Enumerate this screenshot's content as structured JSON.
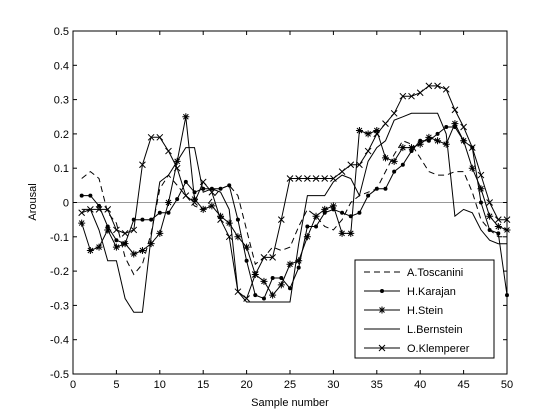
{
  "chart_data": {
    "type": "line",
    "xlabel": "Sample number",
    "ylabel": "Arousal",
    "xlim": [
      0,
      50
    ],
    "ylim": [
      -0.5,
      0.5
    ],
    "xticks": [
      0,
      5,
      10,
      15,
      20,
      25,
      30,
      35,
      40,
      45,
      50
    ],
    "yticks": [
      -0.5,
      -0.4,
      -0.3,
      -0.2,
      -0.1,
      0,
      0.1,
      0.2,
      0.3,
      0.4,
      0.5
    ],
    "zero_line": true,
    "legend_position": "bottom-right",
    "x": [
      1,
      2,
      3,
      4,
      5,
      6,
      7,
      8,
      9,
      10,
      11,
      12,
      13,
      14,
      15,
      16,
      17,
      18,
      19,
      20,
      21,
      22,
      23,
      24,
      25,
      26,
      27,
      28,
      29,
      30,
      31,
      32,
      33,
      34,
      35,
      36,
      37,
      38,
      39,
      40,
      41,
      42,
      43,
      44,
      45,
      46,
      47,
      48,
      49,
      50
    ],
    "series": [
      {
        "name": "A.Toscanini",
        "style": "dashed",
        "marker": "none",
        "values": [
          0.07,
          0.09,
          0.07,
          -0.03,
          -0.06,
          -0.16,
          -0.21,
          -0.18,
          -0.09,
          0.04,
          0.08,
          0.05,
          0.02,
          -0.01,
          -0.02,
          0.01,
          0.04,
          0.05,
          0.02,
          -0.08,
          -0.18,
          -0.16,
          -0.13,
          -0.14,
          -0.13,
          -0.07,
          -0.02,
          -0.04,
          -0.07,
          -0.08,
          -0.05,
          0.0,
          0.02,
          0.03,
          0.04,
          0.09,
          0.14,
          0.18,
          0.17,
          0.13,
          0.09,
          0.08,
          0.08,
          0.09,
          0.09,
          0.03,
          -0.05,
          -0.08,
          -0.1,
          -0.1
        ]
      },
      {
        "name": "H.Karajan",
        "style": "solid",
        "marker": "dot",
        "values": [
          0.02,
          0.02,
          -0.01,
          -0.07,
          -0.11,
          -0.12,
          -0.05,
          -0.05,
          -0.05,
          -0.03,
          -0.03,
          0.01,
          0.06,
          0.03,
          0.04,
          0.04,
          0.04,
          0.05,
          -0.05,
          -0.17,
          -0.27,
          -0.28,
          -0.22,
          -0.22,
          -0.25,
          -0.19,
          -0.07,
          -0.07,
          -0.03,
          -0.02,
          -0.03,
          -0.04,
          -0.03,
          0.02,
          0.04,
          0.04,
          0.09,
          0.11,
          0.15,
          0.18,
          0.18,
          0.2,
          0.22,
          0.22,
          0.18,
          0.16,
          0.0,
          -0.08,
          -0.09,
          -0.27
        ]
      },
      {
        "name": "H.Stein",
        "style": "solid",
        "marker": "star",
        "values": [
          -0.06,
          -0.14,
          -0.13,
          -0.08,
          -0.13,
          -0.12,
          -0.15,
          -0.14,
          -0.12,
          -0.09,
          0.0,
          0.12,
          0.25,
          0.01,
          -0.02,
          -0.01,
          -0.04,
          -0.06,
          -0.1,
          -0.13,
          -0.21,
          -0.23,
          -0.27,
          -0.24,
          -0.18,
          -0.17,
          -0.1,
          -0.04,
          -0.02,
          -0.01,
          -0.09,
          -0.09,
          0.21,
          0.2,
          0.21,
          0.13,
          0.12,
          0.16,
          0.16,
          0.17,
          0.19,
          0.18,
          0.17,
          0.23,
          0.18,
          0.1,
          0.04,
          -0.04,
          -0.07,
          -0.08
        ]
      },
      {
        "name": "L.Bernstein",
        "style": "solid",
        "marker": "none",
        "values": [
          -0.02,
          -0.02,
          -0.08,
          -0.17,
          -0.17,
          -0.28,
          -0.32,
          -0.32,
          -0.1,
          0.06,
          0.08,
          0.12,
          0.16,
          0.16,
          0.03,
          0.04,
          0.03,
          -0.02,
          -0.26,
          -0.29,
          -0.29,
          -0.29,
          -0.29,
          -0.29,
          -0.29,
          -0.12,
          0.02,
          0.02,
          0.02,
          0.06,
          0.08,
          0.07,
          0.02,
          0.12,
          0.16,
          0.18,
          0.24,
          0.25,
          0.26,
          0.26,
          0.26,
          0.26,
          0.2,
          -0.04,
          -0.02,
          -0.03,
          -0.08,
          -0.11,
          -0.12,
          -0.12
        ]
      },
      {
        "name": "O.Klemperer",
        "style": "solid",
        "marker": "x",
        "values": [
          -0.03,
          -0.02,
          -0.02,
          -0.02,
          -0.08,
          -0.09,
          -0.08,
          0.11,
          0.19,
          0.19,
          0.15,
          0.1,
          0.02,
          0.0,
          0.06,
          0.03,
          -0.05,
          -0.1,
          -0.26,
          -0.28,
          -0.21,
          -0.16,
          -0.16,
          -0.05,
          0.07,
          0.07,
          0.07,
          0.07,
          0.07,
          0.07,
          0.09,
          0.11,
          0.11,
          0.15,
          0.2,
          0.23,
          0.26,
          0.31,
          0.31,
          0.32,
          0.34,
          0.34,
          0.33,
          0.27,
          0.22,
          0.16,
          0.08,
          0.0,
          -0.05,
          -0.05
        ]
      }
    ]
  }
}
